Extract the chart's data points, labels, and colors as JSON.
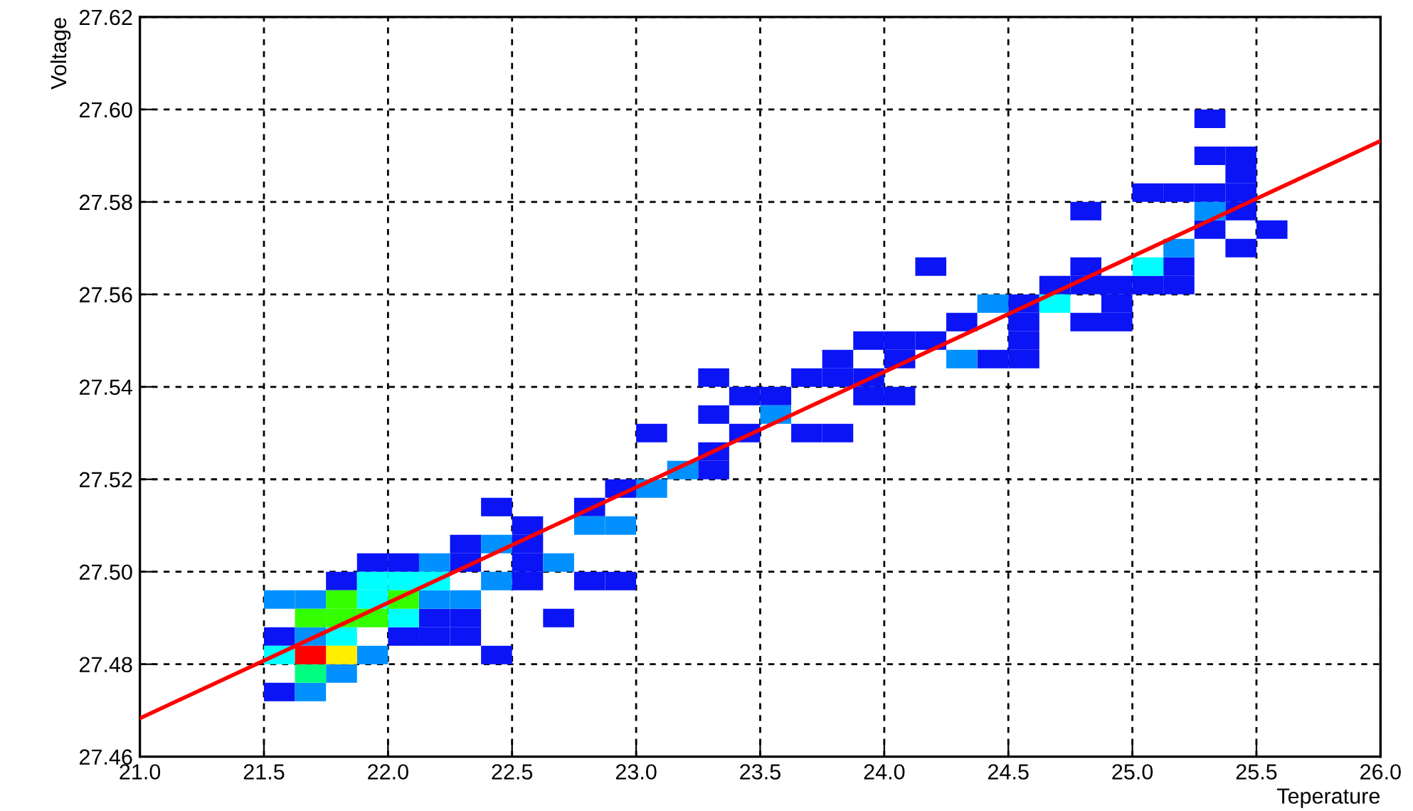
{
  "chart_data": {
    "type": "scatter",
    "xlabel": "Teperature",
    "ylabel": "Voltage",
    "marker": "square",
    "grid": true,
    "xlim": [
      21.0,
      26.0
    ],
    "ylim": [
      27.46,
      27.62
    ],
    "xticks": [
      {
        "value": 21.0,
        "label": "21.0"
      },
      {
        "value": 21.5,
        "label": "21.5"
      },
      {
        "value": 22.0,
        "label": "22.0"
      },
      {
        "value": 22.5,
        "label": "22.5"
      },
      {
        "value": 23.0,
        "label": "23.0"
      },
      {
        "value": 23.5,
        "label": "23.5"
      },
      {
        "value": 24.0,
        "label": "24.0"
      },
      {
        "value": 24.5,
        "label": "24.5"
      },
      {
        "value": 25.0,
        "label": "25.0"
      },
      {
        "value": 25.5,
        "label": "25.5"
      },
      {
        "value": 26.0,
        "label": "26.0"
      }
    ],
    "yticks": [
      {
        "value": 27.46,
        "label": "27.46"
      },
      {
        "value": 27.48,
        "label": "27.48"
      },
      {
        "value": 27.5,
        "label": "27.50"
      },
      {
        "value": 27.52,
        "label": "27.52"
      },
      {
        "value": 27.54,
        "label": "27.54"
      },
      {
        "value": 27.56,
        "label": "27.56"
      },
      {
        "value": 27.58,
        "label": "27.58"
      },
      {
        "value": 27.6,
        "label": "27.60"
      },
      {
        "value": 27.62,
        "label": "27.62"
      }
    ],
    "series": [
      {
        "color": "#0a14f5",
        "x": [
          21.5625,
          22.4375,
          21.5625,
          22.0625,
          22.1875,
          22.3125,
          22.1875,
          22.3125,
          22.6875,
          21.8125,
          22.5625,
          22.8125,
          22.9375,
          21.9375,
          22.0625,
          22.3125,
          22.5625,
          22.3125,
          22.5625,
          22.5625,
          22.4375,
          22.8125,
          22.9375,
          23.3125,
          23.3125,
          23.0625,
          23.4375,
          23.6875,
          23.8125,
          23.3125,
          23.4375,
          23.5625,
          23.9375,
          24.0625,
          23.3125,
          23.6875,
          23.8125,
          23.9375,
          23.8125,
          24.0625,
          24.4375,
          24.5625,
          23.9375,
          24.0625,
          24.1875,
          24.5625,
          24.3125,
          24.5625,
          24.8125,
          24.9375,
          24.5625,
          24.9375,
          24.6875,
          24.8125,
          24.9375,
          25.0625,
          25.1875,
          24.1875,
          24.8125,
          25.1875,
          25.4375,
          25.3125,
          25.5625,
          24.8125,
          25.4375,
          25.0625,
          25.1875,
          25.3125,
          25.4375,
          25.4375,
          25.3125,
          25.4375,
          25.3125
        ],
        "values": [
          27.474,
          27.482,
          27.486,
          27.486,
          27.486,
          27.486,
          27.49,
          27.49,
          27.49,
          27.498,
          27.498,
          27.498,
          27.498,
          27.502,
          27.502,
          27.502,
          27.502,
          27.506,
          27.506,
          27.51,
          27.514,
          27.514,
          27.518,
          27.522,
          27.526,
          27.53,
          27.53,
          27.53,
          27.53,
          27.534,
          27.538,
          27.538,
          27.538,
          27.538,
          27.542,
          27.542,
          27.542,
          27.542,
          27.546,
          27.546,
          27.546,
          27.546,
          27.55,
          27.55,
          27.55,
          27.55,
          27.554,
          27.554,
          27.554,
          27.554,
          27.558,
          27.558,
          27.562,
          27.562,
          27.562,
          27.562,
          27.562,
          27.566,
          27.566,
          27.566,
          27.57,
          27.574,
          27.574,
          27.578,
          27.578,
          27.582,
          27.582,
          27.582,
          27.582,
          27.586,
          27.59,
          27.59,
          27.598
        ]
      },
      {
        "color": "#0090ff",
        "x": [
          21.6875,
          21.8125,
          21.9375,
          21.6875,
          21.5625,
          21.6875,
          22.1875,
          22.3125,
          22.4375,
          22.1875,
          22.6875,
          22.4375,
          22.8125,
          22.9375,
          23.0625,
          23.1875,
          23.5625,
          24.3125,
          24.4375,
          25.1875,
          25.3125
        ],
        "values": [
          27.474,
          27.478,
          27.482,
          27.486,
          27.494,
          27.494,
          27.494,
          27.494,
          27.498,
          27.502,
          27.502,
          27.506,
          27.51,
          27.51,
          27.518,
          27.522,
          27.534,
          27.546,
          27.558,
          27.57,
          27.578
        ]
      },
      {
        "color": "#00ffff",
        "x": [
          21.5625,
          21.8125,
          22.0625,
          21.9375,
          21.9375,
          22.0625,
          22.1875,
          24.6875,
          25.0625
        ],
        "values": [
          27.482,
          27.486,
          27.49,
          27.494,
          27.498,
          27.498,
          27.498,
          27.558,
          27.566
        ]
      },
      {
        "color": "#33ff00",
        "x": [
          21.6875,
          21.8125,
          21.9375,
          21.8125,
          22.0625
        ],
        "values": [
          27.49,
          27.49,
          27.49,
          27.494,
          27.494
        ]
      },
      {
        "color": "#00ff80",
        "x": [
          21.6875
        ],
        "values": [
          27.478
        ]
      },
      {
        "color": "#ffee00",
        "x": [
          21.8125
        ],
        "values": [
          27.482
        ]
      },
      {
        "color": "#ff0000",
        "x": [
          21.6875
        ],
        "values": [
          27.482
        ]
      },
      {
        "type": "line",
        "color": "#ff0000",
        "marker": "none",
        "x": [
          21.0,
          26.0
        ],
        "values": [
          27.4683,
          27.5932
        ]
      }
    ]
  }
}
